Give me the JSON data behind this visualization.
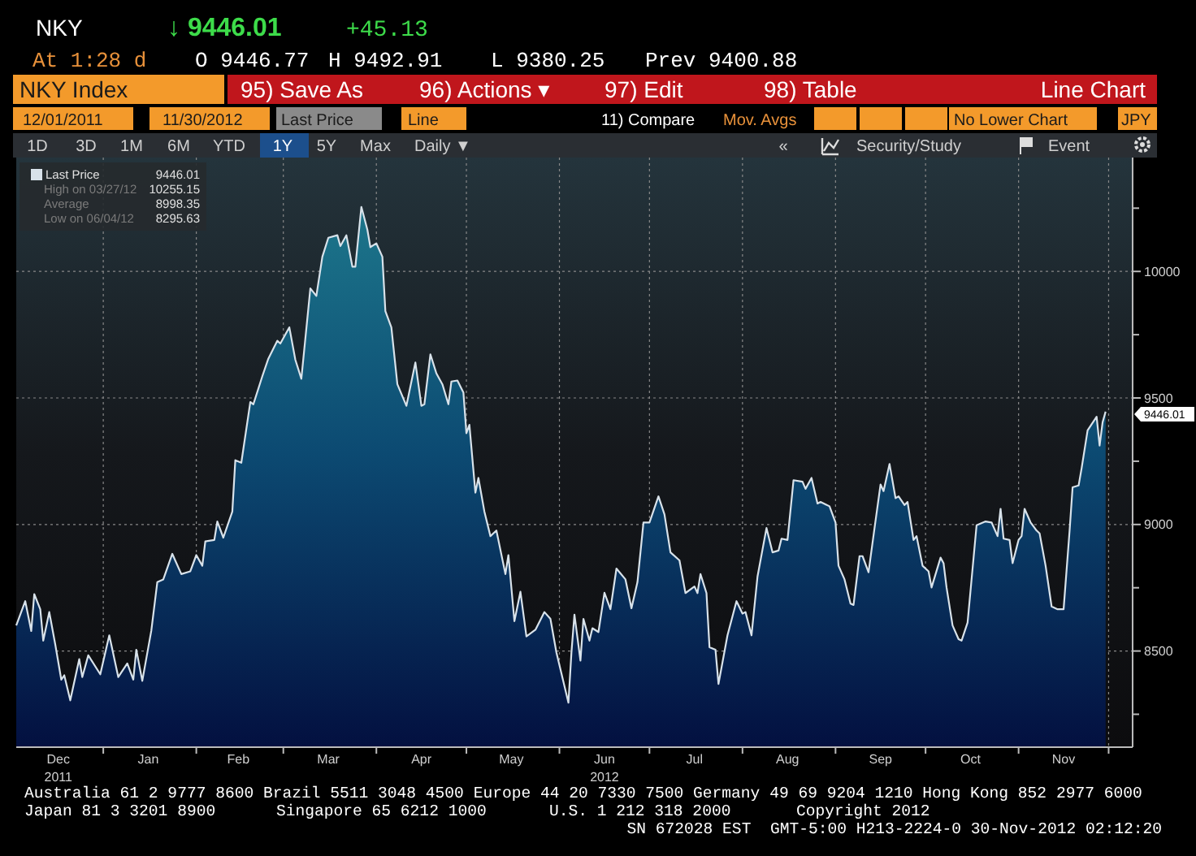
{
  "chart_data": {
    "type": "area",
    "x": [
      "2011-12-03",
      "2011-12-06",
      "2011-12-08",
      "2011-12-09",
      "2011-12-11",
      "2011-12-12",
      "2011-12-14",
      "2011-12-16",
      "2011-12-18",
      "2011-12-19",
      "2011-12-21",
      "2011-12-24",
      "2011-12-25",
      "2011-12-27",
      "2011-12-31",
      "2012-01-03",
      "2012-01-06",
      "2012-01-09",
      "2012-01-11",
      "2012-01-12",
      "2012-01-14",
      "2012-01-17",
      "2012-01-19",
      "2012-01-21",
      "2012-01-24",
      "2012-01-27",
      "2012-01-30",
      "2012-02-01",
      "2012-02-03",
      "2012-02-04",
      "2012-02-07",
      "2012-02-08",
      "2012-02-10",
      "2012-02-13",
      "2012-02-14",
      "2012-02-16",
      "2012-02-19",
      "2012-02-20",
      "2012-02-23",
      "2012-02-25",
      "2012-02-28",
      "2012-02-29",
      "2012-03-03",
      "2012-03-05",
      "2012-03-07",
      "2012-03-10",
      "2012-03-12",
      "2012-03-14",
      "2012-03-16",
      "2012-03-19",
      "2012-03-20",
      "2012-03-22",
      "2012-03-24",
      "2012-03-25",
      "2012-03-27",
      "2012-03-29",
      "2012-03-30",
      "2012-04-01",
      "2012-04-03",
      "2012-04-04",
      "2012-04-06",
      "2012-04-08",
      "2012-04-11",
      "2012-04-14",
      "2012-04-16",
      "2012-04-17",
      "2012-04-19",
      "2012-04-21",
      "2012-04-23",
      "2012-04-25",
      "2012-04-26",
      "2012-04-28",
      "2012-04-30",
      "2012-05-01",
      "2012-05-02",
      "2012-05-04",
      "2012-05-05",
      "2012-05-07",
      "2012-05-09",
      "2012-05-11",
      "2012-05-14",
      "2012-05-15",
      "2012-05-17",
      "2012-05-19",
      "2012-05-21",
      "2012-05-24",
      "2012-05-27",
      "2012-05-29",
      "2012-05-31",
      "2012-06-04",
      "2012-06-05",
      "2012-06-06",
      "2012-06-08",
      "2012-06-09",
      "2012-06-11",
      "2012-06-12",
      "2012-06-14",
      "2012-06-16",
      "2012-06-18",
      "2012-06-20",
      "2012-06-23",
      "2012-06-25",
      "2012-06-27",
      "2012-06-29",
      "2012-07-01",
      "2012-07-04",
      "2012-07-06",
      "2012-07-08",
      "2012-07-11",
      "2012-07-13",
      "2012-07-16",
      "2012-07-17",
      "2012-07-18",
      "2012-07-20",
      "2012-07-21",
      "2012-07-23",
      "2012-07-24",
      "2012-07-27",
      "2012-07-30",
      "2012-08-01",
      "2012-08-02",
      "2012-08-04",
      "2012-08-06",
      "2012-08-09",
      "2012-08-11",
      "2012-08-13",
      "2012-08-14",
      "2012-08-16",
      "2012-08-18",
      "2012-08-21",
      "2012-08-22",
      "2012-08-24",
      "2012-08-26",
      "2012-08-27",
      "2012-08-30",
      "2012-09-01",
      "2012-09-02",
      "2012-09-04",
      "2012-09-06",
      "2012-09-07",
      "2012-09-09",
      "2012-09-10",
      "2012-09-12",
      "2012-09-14",
      "2012-09-16",
      "2012-09-17",
      "2012-09-19",
      "2012-09-21",
      "2012-09-22",
      "2012-09-24",
      "2012-09-25",
      "2012-09-27",
      "2012-09-28",
      "2012-09-30",
      "2012-10-02",
      "2012-10-03",
      "2012-10-06",
      "2012-10-07",
      "2012-10-08",
      "2012-10-10",
      "2012-10-12",
      "2012-10-13",
      "2012-10-15",
      "2012-10-18",
      "2012-10-21",
      "2012-10-23",
      "2012-10-25",
      "2012-10-26",
      "2012-10-27",
      "2012-10-29",
      "2012-10-30",
      "2012-11-01",
      "2012-11-02",
      "2012-11-03",
      "2012-11-05",
      "2012-11-07",
      "2012-11-08",
      "2012-11-10",
      "2012-11-12",
      "2012-11-14",
      "2012-11-16",
      "2012-11-18",
      "2012-11-19",
      "2012-11-21",
      "2012-11-22",
      "2012-11-24",
      "2012-11-27",
      "2012-11-28",
      "2012-11-29",
      "2012-11-30"
    ],
    "series": [
      {
        "name": "Last Price",
        "color": "#d8e2ea",
        "values": [
          8601,
          8697,
          8579,
          8725,
          8665,
          8541,
          8654,
          8526,
          8387,
          8404,
          8305,
          8468,
          8397,
          8483,
          8408,
          8562,
          8397,
          8451,
          8387,
          8505,
          8382,
          8580,
          8772,
          8783,
          8884,
          8804,
          8815,
          8879,
          8837,
          8933,
          8939,
          9012,
          8948,
          9051,
          9254,
          9244,
          9484,
          9475,
          9586,
          9655,
          9726,
          9715,
          9779,
          9651,
          9576,
          9933,
          9903,
          10058,
          10133,
          10143,
          10100,
          10143,
          10019,
          10019,
          10255,
          10165,
          10096,
          10111,
          10058,
          9843,
          9779,
          9554,
          9469,
          9640,
          9469,
          9475,
          9672,
          9597,
          9554,
          9475,
          9565,
          9569,
          9522,
          9361,
          9394,
          9126,
          9184,
          9051,
          8954,
          8976,
          8804,
          8879,
          8618,
          8734,
          8558,
          8584,
          8654,
          8627,
          8494,
          8296,
          8494,
          8644,
          8462,
          8627,
          8541,
          8590,
          8575,
          8730,
          8665,
          8826,
          8783,
          8669,
          8772,
          9008,
          9008,
          9111,
          9040,
          8890,
          8858,
          8729,
          8755,
          8729,
          8804,
          8729,
          8515,
          8505,
          8370,
          8562,
          8697,
          8648,
          8654,
          8562,
          8794,
          8986,
          8890,
          8897,
          8944,
          8939,
          9175,
          9169,
          9141,
          9184,
          9083,
          9089,
          9072,
          9008,
          8837,
          8783,
          8687,
          8682,
          8875,
          8875,
          8811,
          8986,
          9158,
          9132,
          9239,
          9104,
          9111,
          9077,
          9089,
          8939,
          8954,
          8837,
          8815,
          8751,
          8869,
          8847,
          8751,
          8601,
          8547,
          8541,
          8612,
          8997,
          9012,
          9008,
          8954,
          9062,
          8944,
          8939,
          8847,
          8939,
          8954,
          9062,
          9008,
          8976,
          8965,
          8837,
          8676,
          8665,
          8665,
          8976,
          9147,
          9154,
          9222,
          9372,
          9426,
          9312,
          9404,
          9446
        ]
      }
    ],
    "xlim": [
      "2011-12-03",
      "2012-12-09"
    ],
    "xticks": [
      {
        "value": "2012-01-01",
        "label": null
      },
      {
        "value": "2012-02-01",
        "label": null
      },
      {
        "value": "2012-03-01",
        "label": null
      },
      {
        "value": "2012-04-01",
        "label": null
      },
      {
        "value": "2012-05-01",
        "label": null
      },
      {
        "value": "2012-06-01",
        "label": null
      },
      {
        "value": "2012-07-01",
        "label": null
      },
      {
        "value": "2012-08-01",
        "label": null
      },
      {
        "value": "2012-09-01",
        "label": null
      },
      {
        "value": "2012-10-01",
        "label": null
      },
      {
        "value": "2012-11-01",
        "label": null
      },
      {
        "value": "2012-12-01",
        "label": null
      },
      {
        "value": "2011-12-17",
        "label": "Dec\n2011"
      },
      {
        "value": "2012-01-16",
        "label": "Jan"
      },
      {
        "value": "2012-02-15",
        "label": "Feb"
      },
      {
        "value": "2012-03-16",
        "label": "Mar"
      },
      {
        "value": "2012-04-16",
        "label": "Apr"
      },
      {
        "value": "2012-05-16",
        "label": "May"
      },
      {
        "value": "2012-06-16",
        "label": "Jun\n2012"
      },
      {
        "value": "2012-07-16",
        "label": "Jul"
      },
      {
        "value": "2012-08-16",
        "label": "Aug"
      },
      {
        "value": "2012-09-16",
        "label": "Sep"
      },
      {
        "value": "2012-10-16",
        "label": "Oct"
      },
      {
        "value": "2012-11-16",
        "label": "Nov"
      }
    ],
    "ylim": [
      8120,
      10450
    ],
    "yticks": [
      {
        "value": 8250,
        "label": null
      },
      8500,
      {
        "value": 8750,
        "label": null
      },
      9000,
      {
        "value": 9250,
        "label": null
      },
      9500,
      {
        "value": 9750,
        "label": null
      },
      10000,
      {
        "value": 10250,
        "label": null
      }
    ],
    "grid": true,
    "legend": "top left",
    "annotations": [
      "NKY",
      "↓ 9446.01",
      "+45.13",
      "At 1:28 d",
      "O 9446.77",
      "H 9492.91",
      "L 9380.25",
      "Prev 9400.88",
      "NKY Index",
      "95) Save As",
      "96) Actions ▾",
      "97) Edit",
      "98) Table",
      "Line Chart",
      "12/01/2011",
      "11/30/2012",
      "Last Price",
      "Line",
      "11) Compare",
      "Mov. Avgs",
      "No Lower Chart",
      "JPY",
      "1D",
      "3D",
      "1M",
      "6M",
      "YTD",
      "1Y",
      "5Y",
      "Max",
      "Daily ▼",
      "«",
      "Security/Study",
      "Event",
      "9446.01",
      "High on 03/27/12",
      "10255.15",
      "Average",
      "8998.35",
      "Low on 06/04/12",
      "8295.63",
      "Australia 61 2 9777 8600 Brazil 5511 3048 4500 Europe 44 20 7330 7500 Germany 49 69 9204 1210 Hong Kong 852 2977 6000",
      "Japan 81 3 3201 8900",
      "Singapore 65 6212 1000",
      "U.S. 1 212 318 2000",
      "Copyright 2012",
      "SN 672028 EST  GMT-5:00 H213-2224-0 30-Nov-2012 02:12:20",
      "9446.01"
    ]
  }
}
